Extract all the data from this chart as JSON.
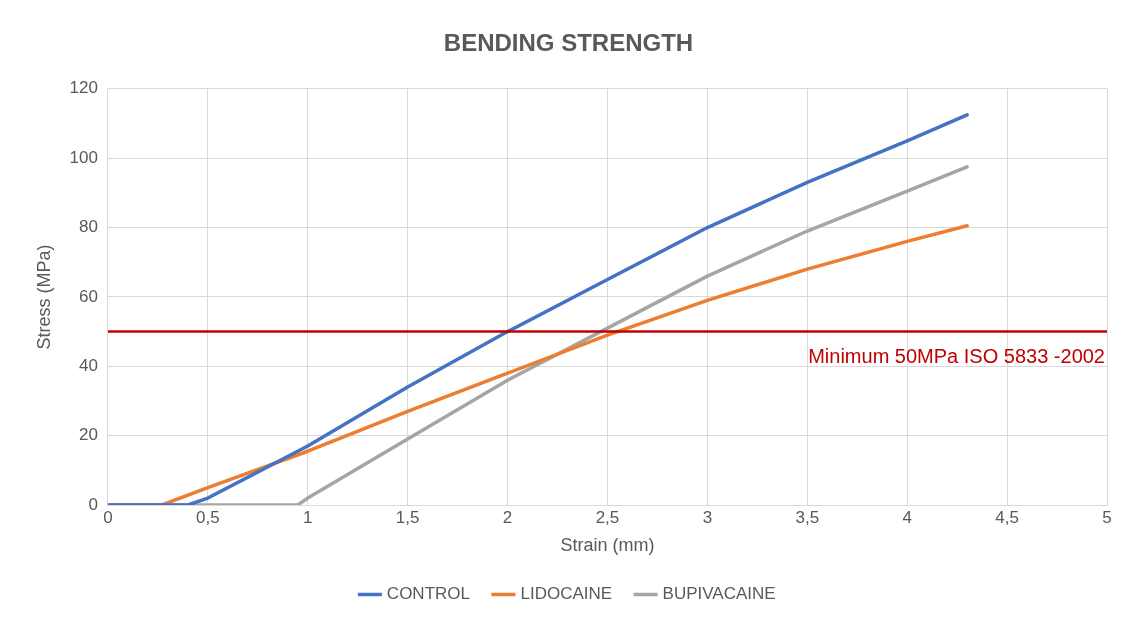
{
  "chart_data": {
    "type": "line",
    "title": "BENDING STRENGTH",
    "xlabel": "Strain (mm)",
    "ylabel": "Stress (MPa)",
    "xlim": [
      0,
      5
    ],
    "xticks": [
      0,
      {
        "value": 0.5,
        "label": "0,5"
      },
      1,
      {
        "value": 1.5,
        "label": "1,5"
      },
      2,
      {
        "value": 2.5,
        "label": "2,5"
      },
      3,
      {
        "value": 3.5,
        "label": "3,5"
      },
      4,
      {
        "value": 4.5,
        "label": "4,5"
      },
      5
    ],
    "ylim": [
      0,
      120
    ],
    "yticks": [
      0,
      20,
      40,
      60,
      80,
      100,
      120
    ],
    "grid": true,
    "legend": "bottom",
    "marker": "none",
    "line_style": "solid",
    "series": [
      {
        "name": "CONTROL",
        "color": "#4472c4",
        "x": [
          0,
          0.4,
          0.5,
          1,
          1.5,
          2,
          2.5,
          3,
          3.5,
          4,
          4.3
        ],
        "values": [
          0,
          0,
          2,
          17,
          34,
          50,
          65,
          80,
          93,
          105,
          112.5
        ]
      },
      {
        "name": "LIDOCAINE",
        "color": "#ed7d31",
        "x": [
          0,
          0.27,
          0.5,
          1,
          1.5,
          2,
          2.5,
          3,
          3.5,
          4,
          4.3
        ],
        "values": [
          0,
          0,
          5,
          15.5,
          27,
          38,
          49,
          59,
          68,
          76,
          80.5
        ]
      },
      {
        "name": "BUPIVACAINE",
        "color": "#a5a5a5",
        "x": [
          0,
          0.95,
          1,
          1.5,
          2,
          2.5,
          3,
          3.5,
          4,
          4.3
        ],
        "values": [
          0,
          0,
          2,
          19,
          36,
          51,
          66,
          79,
          90.5,
          97.5
        ]
      }
    ],
    "ref_lines": [
      {
        "axis": "y",
        "value": 50,
        "label": "Minimum 50MPa ISO 5833 -2002",
        "color": "#c00000"
      }
    ]
  }
}
